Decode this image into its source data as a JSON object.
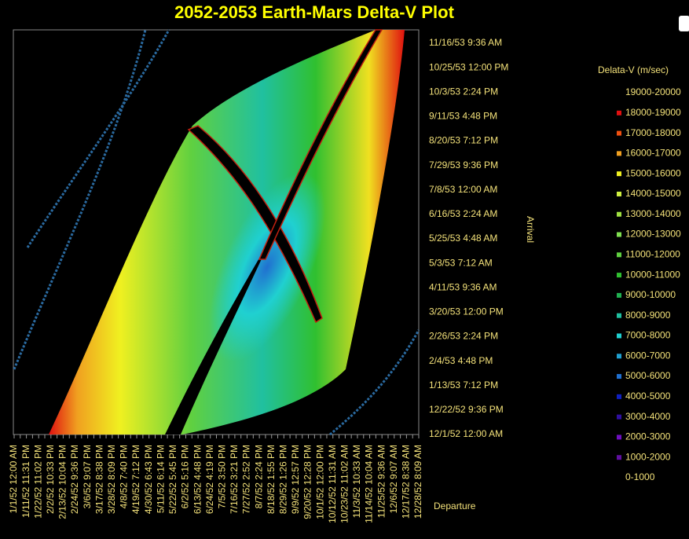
{
  "chart_data": {
    "type": "contour",
    "title": "2052-2053 Earth-Mars Delta-V Plot",
    "x_label": "Departure",
    "y_label": "Arrival",
    "legend_title": "Delata-V (m/sec)",
    "x_categories": [
      "1/1/52 12:00 AM",
      "1/11/52 11:31 PM",
      "1/22/52 11:02 PM",
      "2/2/52 10:33 PM",
      "2/13/52 10:04 PM",
      "2/24/52 9:36 PM",
      "3/6/52 9:07 PM",
      "3/17/52 8:38 PM",
      "3/28/52 8:09 PM",
      "4/8/52 7:40 PM",
      "4/19/52 7:12 PM",
      "4/30/52 6:43 PM",
      "5/11/52 6:14 PM",
      "5/22/52 5:45 PM",
      "6/2/52 5:16 PM",
      "6/13/52 4:48 PM",
      "6/24/52 4:19 PM",
      "7/5/52 3:50 PM",
      "7/16/52 3:21 PM",
      "7/27/52 2:52 PM",
      "8/7/52 2:24 PM",
      "8/18/52 1:55 PM",
      "8/29/52 1:26 PM",
      "9/9/52 12:57 PM",
      "9/20/52 12:28 PM",
      "10/1/52 12:00 PM",
      "10/12/52 11:31 AM",
      "10/23/52 11:02 AM",
      "11/3/52 10:33 AM",
      "11/14/52 10:04 AM",
      "11/25/52 9:36 AM",
      "12/6/52 9:07 AM",
      "12/17/52 8:38 AM",
      "12/28/52 8:09 AM"
    ],
    "y_categories": [
      "12/1/52 12:00 AM",
      "12/22/52 9:36 PM",
      "1/13/53 7:12 PM",
      "2/4/53 4:48 PM",
      "2/26/53 2:24 PM",
      "3/20/53 12:00 PM",
      "4/11/53 9:36 AM",
      "5/3/53 7:12 AM",
      "5/25/53 4:48 AM",
      "6/16/53 2:24 AM",
      "7/8/53 12:00 AM",
      "7/29/53 9:36 PM",
      "8/20/53 7:12 PM",
      "9/11/53 4:48 PM",
      "10/3/53 2:24 PM",
      "10/25/53 12:00 PM",
      "11/16/53 9:36 AM"
    ],
    "legend": [
      {
        "name": "19000-20000"
      },
      {
        "name": "18000-19000",
        "color": "#e01010"
      },
      {
        "name": "17000-18000",
        "color": "#f05010"
      },
      {
        "name": "16000-17000",
        "color": "#f0a020"
      },
      {
        "name": "15000-16000",
        "color": "#f0f020"
      },
      {
        "name": "14000-15000",
        "color": "#d0f040"
      },
      {
        "name": "13000-14000",
        "color": "#a0e040"
      },
      {
        "name": "12000-13000",
        "color": "#80e050"
      },
      {
        "name": "11000-12000",
        "color": "#60d040"
      },
      {
        "name": "10000-11000",
        "color": "#30c030"
      },
      {
        "name": "9000-10000",
        "color": "#20b050"
      },
      {
        "name": "8000-9000",
        "color": "#20c0a0"
      },
      {
        "name": "7000-8000",
        "color": "#20d0d0"
      },
      {
        "name": "6000-7000",
        "color": "#20a0d0"
      },
      {
        "name": "5000-6000",
        "color": "#2070d0"
      },
      {
        "name": "4000-5000",
        "color": "#1020c0"
      },
      {
        "name": "3000-4000",
        "color": "#3010a0"
      },
      {
        "name": "2000-3000",
        "color": "#7010c0"
      },
      {
        "name": "1000-2000",
        "color": "#6010a0"
      },
      {
        "name": "0-1000"
      }
    ]
  }
}
